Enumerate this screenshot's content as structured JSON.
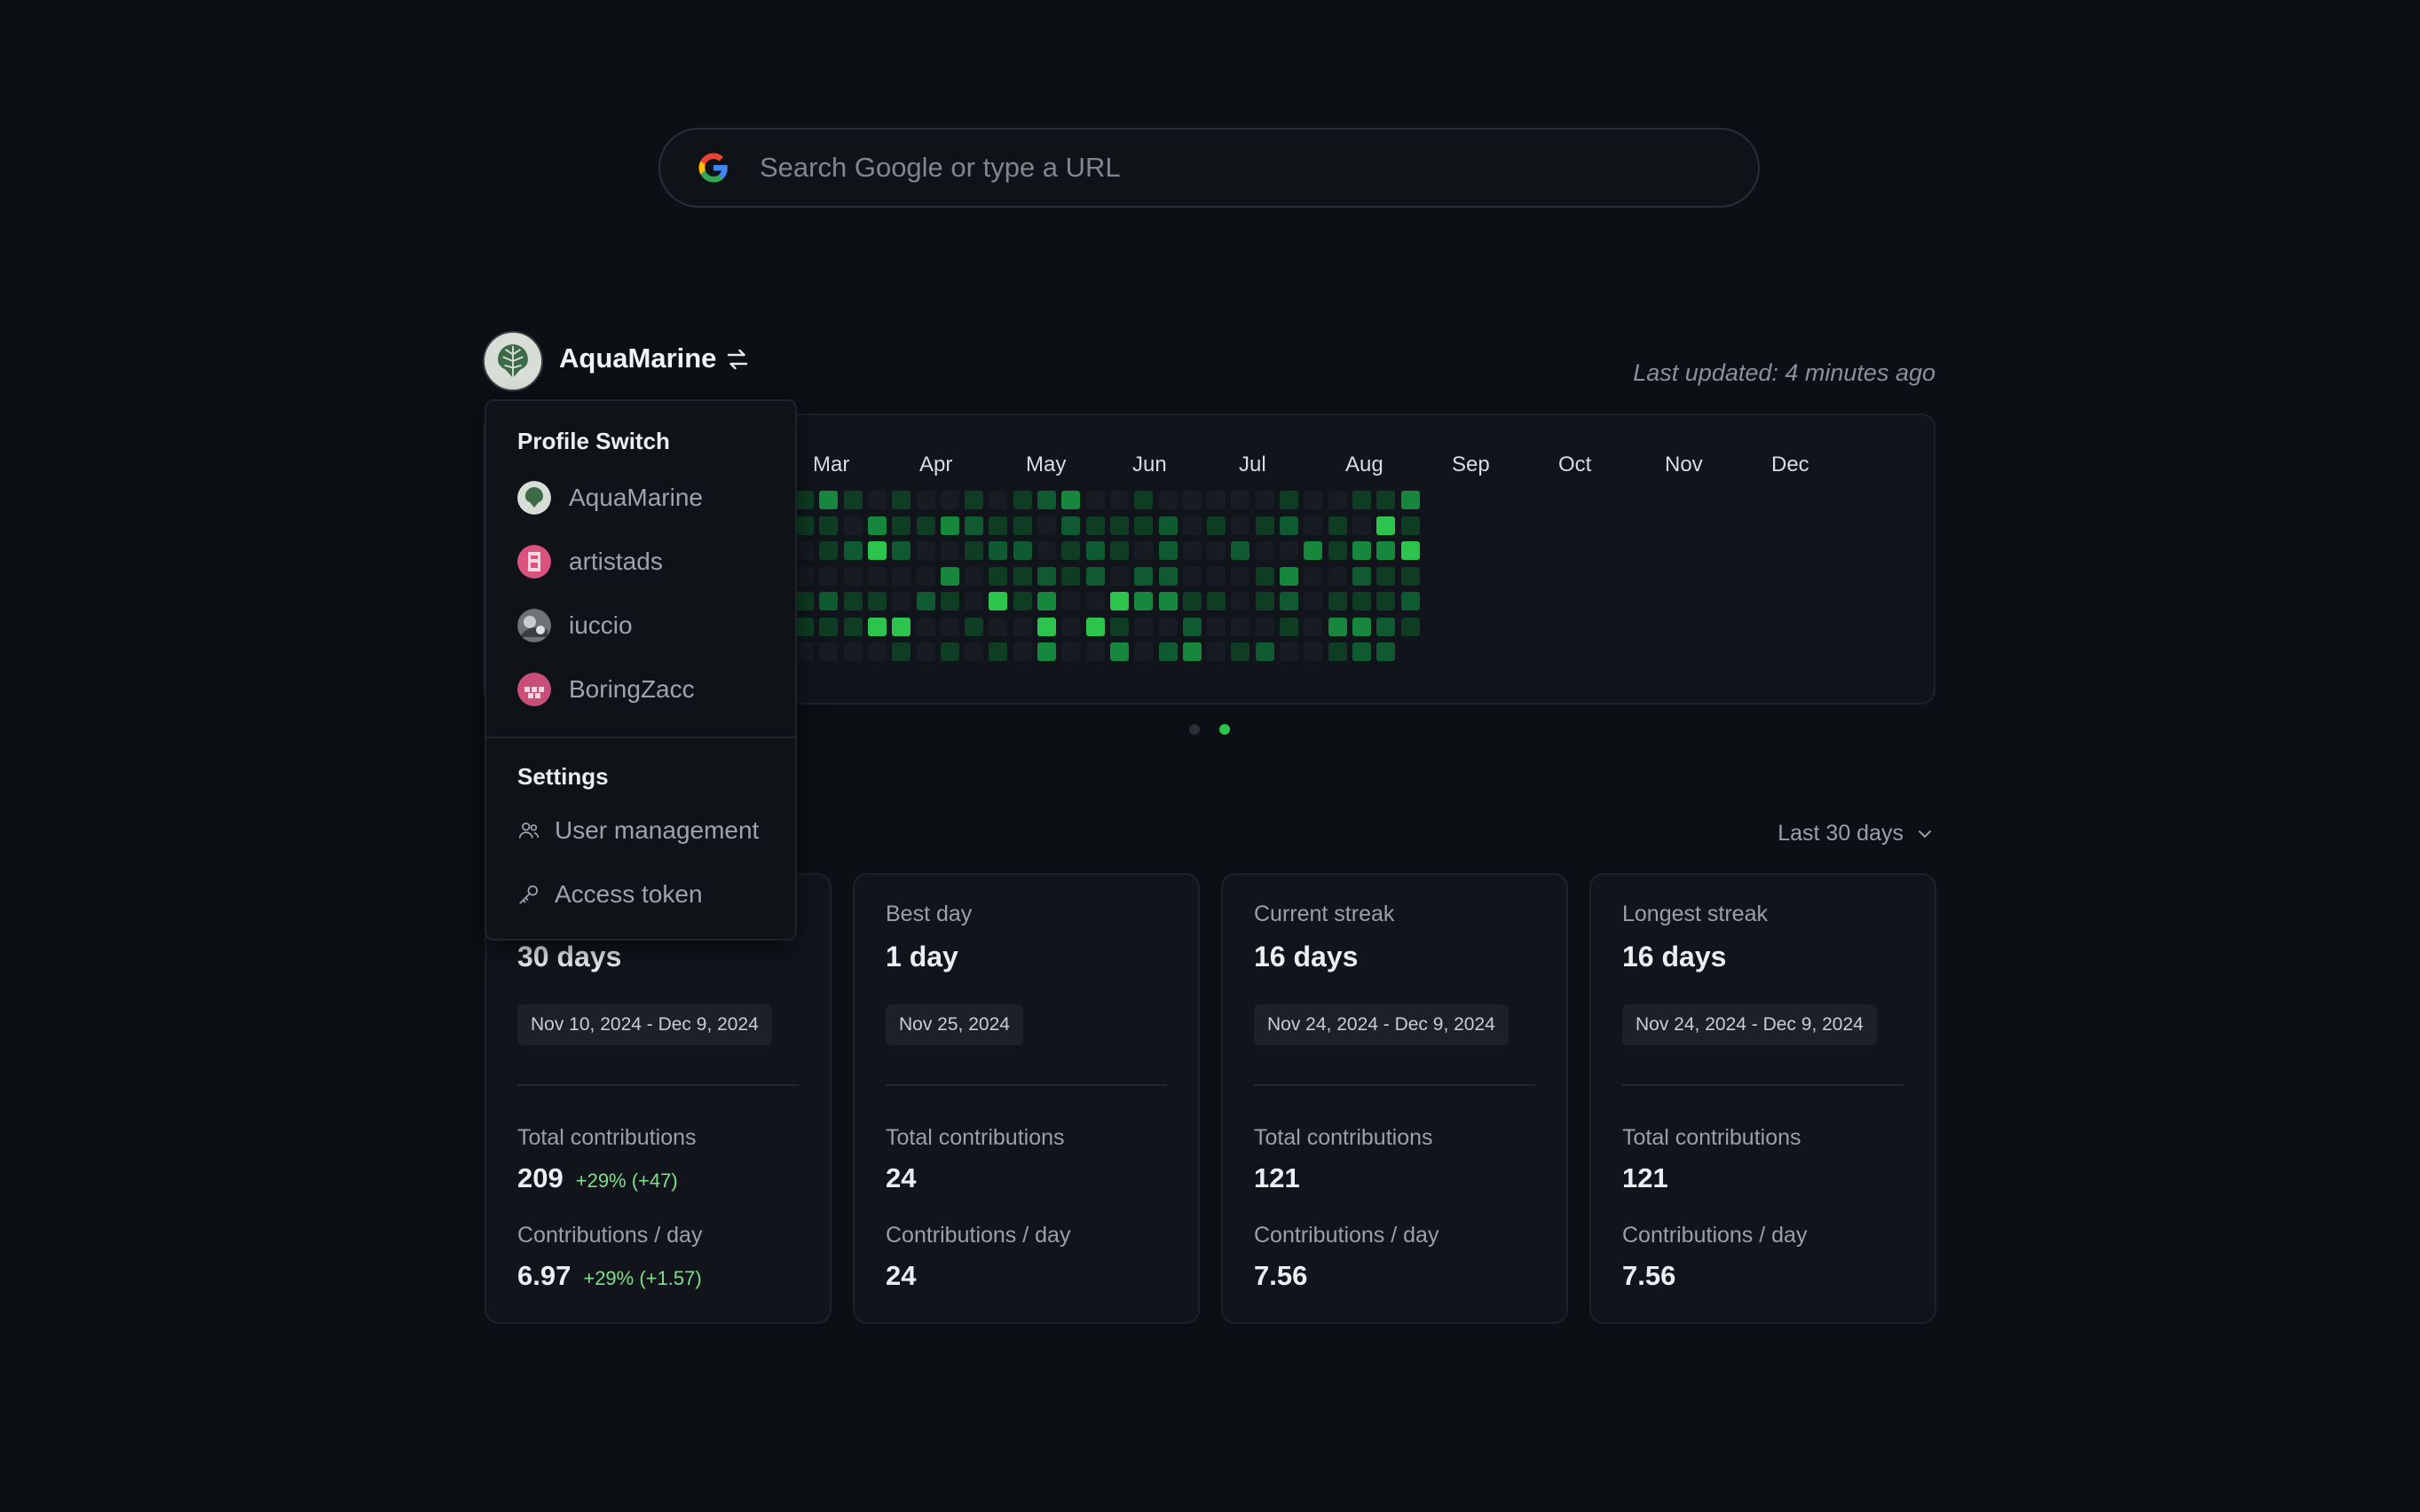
{
  "search": {
    "placeholder": "Search Google or type a URL",
    "icon": "google-icon"
  },
  "profile": {
    "name": "AquaMarine",
    "switch_icon": "swap-icon",
    "last_updated": "Last updated: 4 minutes ago"
  },
  "heatmap": {
    "months": [
      "Mar",
      "Apr",
      "May",
      "Jun",
      "Jul",
      "Aug",
      "Sep",
      "Oct",
      "Nov",
      "Dec"
    ],
    "page_dots": 2,
    "active_dot": 1,
    "colors": {
      "empty": "#171c22",
      "l1": "#0e3d24",
      "l2": "#0f5a30",
      "l3": "#17873e",
      "l4": "#2dc44e"
    }
  },
  "range": {
    "label": "Last 30 days",
    "icon": "chevron-down-icon"
  },
  "cards": [
    {
      "title": "",
      "value": "30 days",
      "chip": "Nov 10, 2024 - Dec 9, 2024",
      "total_label": "Total contributions",
      "total": "209",
      "total_delta": "+29% (+47)",
      "per_day_label": "Contributions / day",
      "per_day": "6.97",
      "per_day_delta": "+29% (+1.57)"
    },
    {
      "title": "Best day",
      "value": "1 day",
      "chip": "Nov 25, 2024",
      "total_label": "Total contributions",
      "total": "24",
      "total_delta": "",
      "per_day_label": "Contributions / day",
      "per_day": "24",
      "per_day_delta": ""
    },
    {
      "title": "Current streak",
      "value": "16 days",
      "chip": "Nov 24, 2024 - Dec 9, 2024",
      "total_label": "Total contributions",
      "total": "121",
      "total_delta": "",
      "per_day_label": "Contributions / day",
      "per_day": "7.56",
      "per_day_delta": ""
    },
    {
      "title": "Longest streak",
      "value": "16 days",
      "chip": "Nov 24, 2024 - Dec 9, 2024",
      "total_label": "Total contributions",
      "total": "121",
      "total_delta": "",
      "per_day_label": "Contributions / day",
      "per_day": "7.56",
      "per_day_delta": ""
    }
  ],
  "menu": {
    "profile_header": "Profile Switch",
    "profiles": [
      {
        "name": "AquaMarine",
        "icon": "monstera-avatar"
      },
      {
        "name": "artistads",
        "icon": "pink-pixel-avatar"
      },
      {
        "name": "iuccio",
        "icon": "photo-avatar"
      },
      {
        "name": "BoringZacc",
        "icon": "pink-checker-avatar"
      }
    ],
    "settings_header": "Settings",
    "settings": [
      {
        "label": "User management",
        "icon": "users-icon"
      },
      {
        "label": "Access token",
        "icon": "key-icon"
      }
    ]
  }
}
